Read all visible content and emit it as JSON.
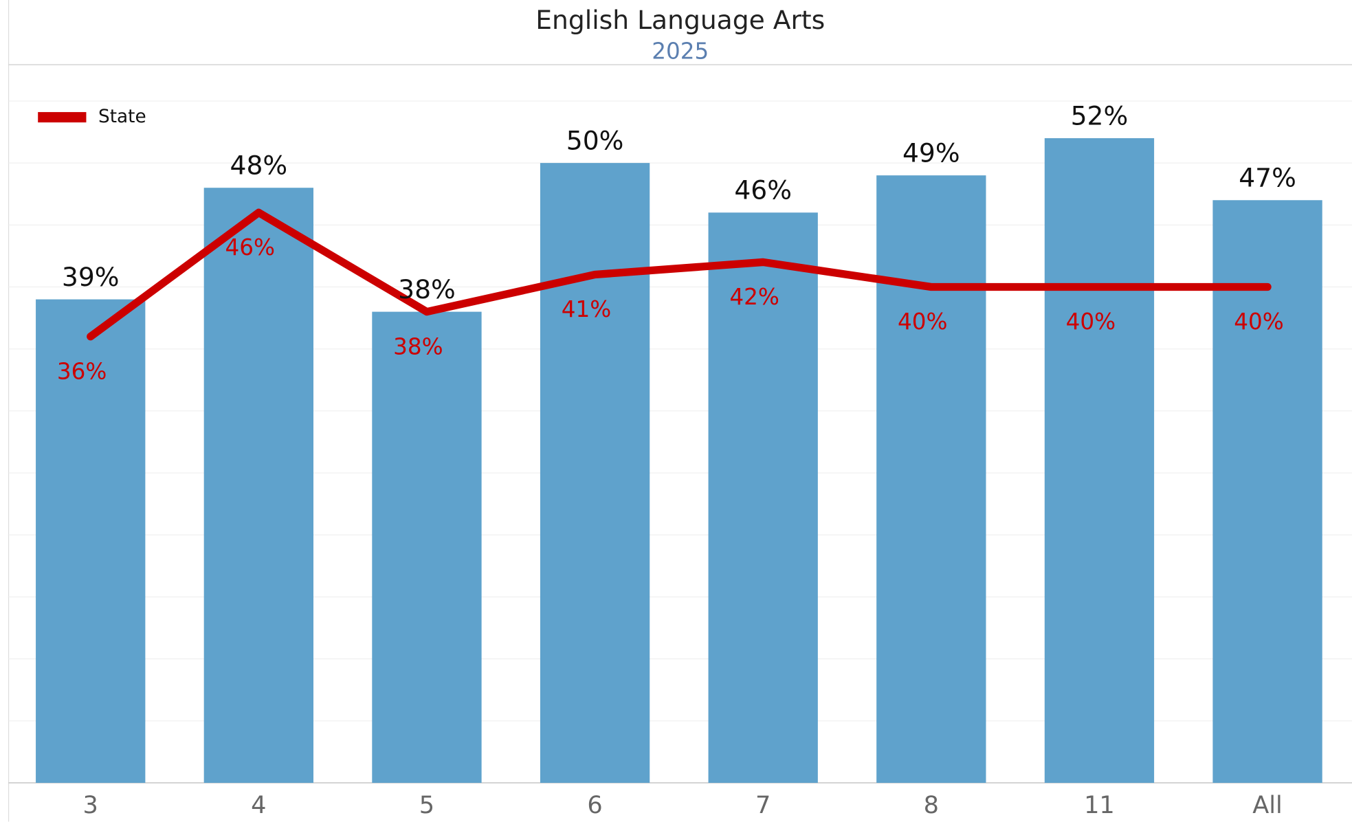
{
  "chart_data": {
    "type": "bar",
    "title": "English Language Arts",
    "subtitle": "2025",
    "categories": [
      "3",
      "4",
      "5",
      "6",
      "7",
      "8",
      "11",
      "All"
    ],
    "series": [
      {
        "type": "bar",
        "color": "#5fa2cc",
        "values": [
          39,
          48,
          38,
          50,
          46,
          49,
          52,
          47
        ],
        "value_labels": [
          "39%",
          "48%",
          "38%",
          "50%",
          "46%",
          "49%",
          "52%",
          "47%"
        ]
      },
      {
        "type": "line",
        "name": "State",
        "color": "#cc0000",
        "values": [
          36,
          46,
          38,
          41,
          42,
          40,
          40,
          40
        ],
        "value_labels": [
          "36%",
          "46%",
          "38%",
          "41%",
          "42%",
          "40%",
          "40%",
          "40%"
        ]
      }
    ],
    "ylim": [
      0,
      58
    ],
    "yticks": [
      0,
      5,
      10,
      15,
      20,
      25,
      30,
      35,
      40,
      45,
      50,
      55
    ],
    "grid": true,
    "legend": "top-left"
  }
}
